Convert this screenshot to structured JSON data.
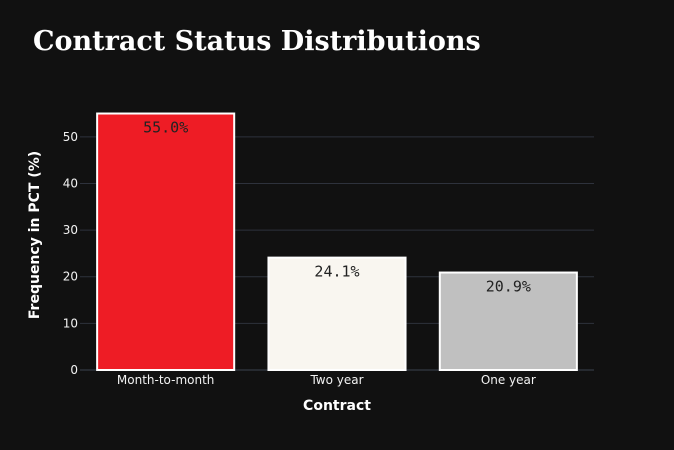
{
  "chart_data": {
    "type": "bar",
    "title": "Contract Status Distributions",
    "xlabel": "Contract",
    "ylabel": "Frequency in PCT (%)",
    "categories": [
      "Month-to-month",
      "Two year",
      "One year"
    ],
    "values": [
      55.0,
      24.1,
      20.9
    ],
    "data_labels": [
      "55.0%",
      "24.1%",
      "20.9%"
    ],
    "colors": [
      "#ee1c25",
      "#f9f6f0",
      "#c0c0c0"
    ],
    "ylim": [
      0,
      57.9
    ],
    "yticks": [
      0,
      10,
      20,
      30,
      40,
      50
    ],
    "grid": true,
    "legend": "none",
    "background": "#111111"
  }
}
